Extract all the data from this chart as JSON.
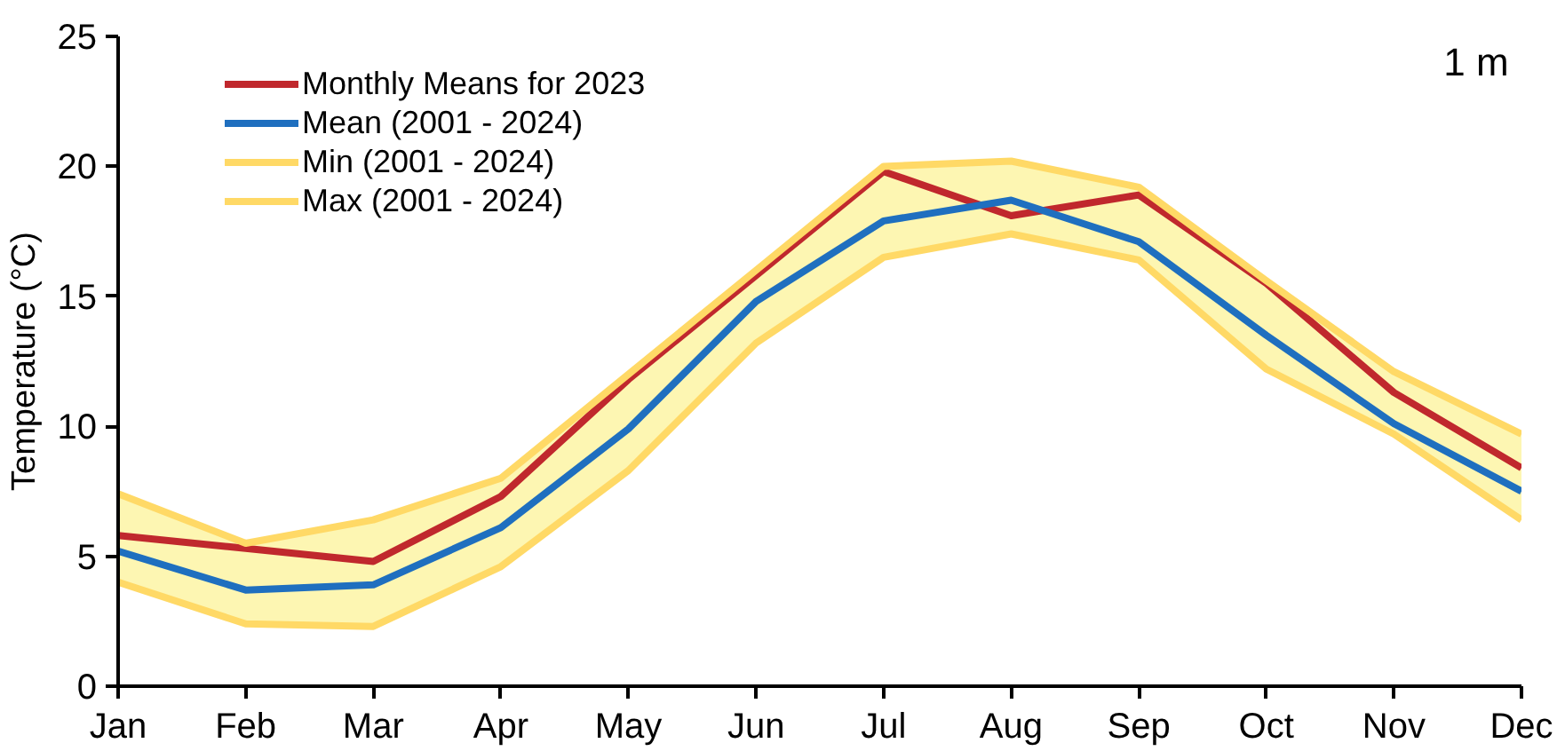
{
  "chart_data": {
    "type": "line",
    "ylabel": "Temperature (°C)",
    "categories": [
      "Jan",
      "Feb",
      "Mar",
      "Apr",
      "May",
      "Jun",
      "Jul",
      "Aug",
      "Sep",
      "Oct",
      "Nov",
      "Dec"
    ],
    "series": [
      {
        "name": "Monthly Means for 2023",
        "color": "#c0282d",
        "values": [
          5.8,
          5.3,
          4.8,
          7.3,
          11.8,
          15.8,
          19.8,
          18.1,
          18.9,
          15.5,
          11.3,
          8.4
        ]
      },
      {
        "name": "Mean (2001 - 2024)",
        "color": "#1f6fbf",
        "values": [
          5.2,
          3.7,
          3.9,
          6.1,
          9.9,
          14.8,
          17.9,
          18.7,
          17.1,
          13.5,
          10.1,
          7.5
        ],
        "lower": [
          4.0,
          2.4,
          2.3,
          4.6,
          8.3,
          13.2,
          16.5,
          17.4,
          16.4,
          12.2,
          9.7,
          6.4
        ],
        "upper": [
          7.4,
          5.5,
          6.4,
          8.0,
          12.0,
          16.0,
          20.0,
          20.2,
          19.2,
          15.6,
          12.1,
          9.7
        ]
      },
      {
        "name": "Min (2001 - 2024)",
        "color": "#ffd966",
        "values": [
          4.0,
          2.4,
          2.3,
          4.6,
          8.3,
          13.2,
          16.5,
          17.4,
          16.4,
          12.2,
          9.7,
          6.4
        ]
      },
      {
        "name": "Max (2001 - 2024)",
        "color": "#ffd966",
        "values": [
          7.4,
          5.5,
          6.4,
          8.0,
          12.0,
          16.0,
          20.0,
          20.2,
          19.2,
          15.6,
          12.1,
          9.7
        ]
      }
    ],
    "ylim": [
      0,
      25
    ],
    "yticks": [
      0,
      5,
      10,
      15,
      20,
      25
    ],
    "annotations": [
      "1 m"
    ],
    "legend": "top left",
    "grid": false,
    "line_style": "solid",
    "marker": "none"
  }
}
